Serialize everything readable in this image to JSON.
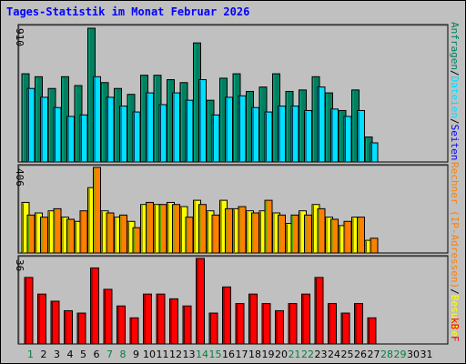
{
  "title": "Tages-Statistik im Monat Februar 2026",
  "colors": {
    "background": "#c0c0c0",
    "title": "#0000ff",
    "anfragen": "#008060",
    "dateien": "#00e0ff",
    "seiten": "#0000ff",
    "rechner": "#ff8000",
    "besuche": "#ffff00",
    "kbf": "#ff0000",
    "day_weekday": "#000000",
    "day_weekend": "#008040"
  },
  "chart_data": [
    {
      "type": "bar",
      "panel": "top",
      "ymax_label": "910",
      "ylim": [
        0,
        910
      ],
      "side_label": [
        "Anfragen",
        "/",
        "Dateien",
        "/",
        "Seiten"
      ],
      "categories": [
        "1",
        "2",
        "3",
        "4",
        "5",
        "6",
        "7",
        "8",
        "9",
        "10",
        "11",
        "12",
        "13",
        "14",
        "15",
        "16",
        "17",
        "18",
        "19",
        "20",
        "21",
        "22",
        "23",
        "24",
        "25",
        "26",
        "27"
      ],
      "series": [
        {
          "name": "Anfragen",
          "values": [
            600,
            580,
            500,
            580,
            520,
            910,
            540,
            500,
            460,
            590,
            590,
            560,
            540,
            810,
            420,
            570,
            600,
            480,
            510,
            600,
            480,
            490,
            580,
            470,
            350,
            490,
            170
          ]
        },
        {
          "name": "Dateien",
          "values": [
            500,
            440,
            370,
            310,
            320,
            580,
            440,
            380,
            340,
            470,
            390,
            470,
            420,
            560,
            320,
            440,
            450,
            370,
            340,
            380,
            380,
            350,
            510,
            360,
            310,
            350,
            130
          ]
        }
      ]
    },
    {
      "type": "bar",
      "panel": "middle",
      "ymax_label": "406",
      "ylim": [
        0,
        406
      ],
      "side_label": [
        "Rechner (IP-Adressen)",
        "/",
        "Besuche"
      ],
      "categories": [
        "1",
        "2",
        "3",
        "4",
        "5",
        "6",
        "7",
        "8",
        "9",
        "10",
        "11",
        "12",
        "13",
        "14",
        "15",
        "16",
        "17",
        "18",
        "19",
        "20",
        "21",
        "22",
        "23",
        "24",
        "25",
        "26",
        "27"
      ],
      "series": [
        {
          "name": "Besuche",
          "values": [
            240,
            190,
            200,
            170,
            150,
            310,
            200,
            170,
            150,
            230,
            230,
            240,
            220,
            250,
            200,
            250,
            210,
            200,
            200,
            190,
            140,
            200,
            230,
            170,
            130,
            170,
            60
          ]
        },
        {
          "name": "Rechner (IP-Adressen)",
          "values": [
            180,
            170,
            210,
            160,
            200,
            406,
            190,
            180,
            120,
            240,
            230,
            230,
            170,
            230,
            180,
            210,
            220,
            190,
            250,
            180,
            180,
            180,
            210,
            160,
            150,
            170,
            70
          ]
        }
      ]
    },
    {
      "type": "bar",
      "panel": "bottom",
      "ymax_label": "36",
      "ylim": [
        0,
        36
      ],
      "side_label": [
        "kB F"
      ],
      "categories": [
        "1",
        "2",
        "3",
        "4",
        "5",
        "6",
        "7",
        "8",
        "9",
        "10",
        "11",
        "12",
        "13",
        "14",
        "15",
        "16",
        "17",
        "18",
        "19",
        "20",
        "21",
        "22",
        "23",
        "24",
        "25",
        "26",
        "27"
      ],
      "series": [
        {
          "name": "kB F",
          "values": [
            28,
            21,
            18,
            14,
            13,
            32,
            23,
            16,
            11,
            21,
            21,
            19,
            16,
            36,
            13,
            24,
            17,
            21,
            17,
            14,
            17,
            21,
            28,
            17,
            13,
            17,
            11
          ]
        }
      ]
    }
  ],
  "x_axis": {
    "days": [
      {
        "label": "1",
        "weekend": true
      },
      {
        "label": "2",
        "weekend": false
      },
      {
        "label": "3",
        "weekend": false
      },
      {
        "label": "4",
        "weekend": false
      },
      {
        "label": "5",
        "weekend": false
      },
      {
        "label": "6",
        "weekend": false
      },
      {
        "label": "7",
        "weekend": true
      },
      {
        "label": "8",
        "weekend": true
      },
      {
        "label": "9",
        "weekend": false
      },
      {
        "label": "10",
        "weekend": false
      },
      {
        "label": "11",
        "weekend": false
      },
      {
        "label": "12",
        "weekend": false
      },
      {
        "label": "13",
        "weekend": false
      },
      {
        "label": "14",
        "weekend": true
      },
      {
        "label": "15",
        "weekend": true
      },
      {
        "label": "16",
        "weekend": false
      },
      {
        "label": "17",
        "weekend": false
      },
      {
        "label": "18",
        "weekend": false
      },
      {
        "label": "19",
        "weekend": false
      },
      {
        "label": "20",
        "weekend": false
      },
      {
        "label": "21",
        "weekend": true
      },
      {
        "label": "22",
        "weekend": true
      },
      {
        "label": "23",
        "weekend": false
      },
      {
        "label": "24",
        "weekend": false
      },
      {
        "label": "25",
        "weekend": false
      },
      {
        "label": "26",
        "weekend": false
      },
      {
        "label": "27",
        "weekend": false
      },
      {
        "label": "28",
        "weekend": true
      },
      {
        "label": "29",
        "weekend": true
      },
      {
        "label": "30",
        "weekend": false
      },
      {
        "label": "31",
        "weekend": false
      }
    ]
  }
}
